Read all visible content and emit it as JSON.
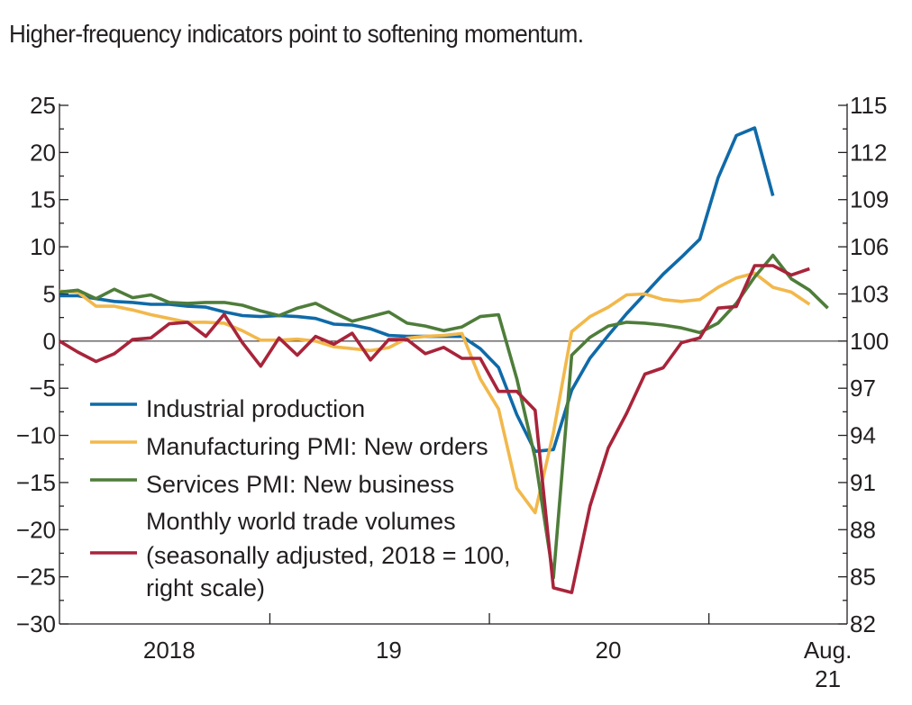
{
  "chart_data": {
    "type": "line",
    "title": "Higher-frequency indicators point to softening momentum.",
    "x": [
      "2018-01",
      "2018-02",
      "2018-03",
      "2018-04",
      "2018-05",
      "2018-06",
      "2018-07",
      "2018-08",
      "2018-09",
      "2018-10",
      "2018-11",
      "2018-12",
      "2019-01",
      "2019-02",
      "2019-03",
      "2019-04",
      "2019-05",
      "2019-06",
      "2019-07",
      "2019-08",
      "2019-09",
      "2019-10",
      "2019-11",
      "2019-12",
      "2020-01",
      "2020-02",
      "2020-03",
      "2020-04",
      "2020-05",
      "2020-06",
      "2020-07",
      "2020-08",
      "2020-09",
      "2020-10",
      "2020-11",
      "2020-12",
      "2021-01",
      "2021-02",
      "2021-03",
      "2021-04",
      "2021-05",
      "2021-06",
      "2021-07",
      "2021-08"
    ],
    "x_tick_labels": [
      {
        "x": "2018-07",
        "label": "2018"
      },
      {
        "x": "2019-07",
        "label": "19"
      },
      {
        "x": "2020-07",
        "label": "20"
      },
      {
        "x": "2021-07",
        "label": "Aug.\n21"
      }
    ],
    "y_left": {
      "ylim": [
        -30,
        25
      ],
      "ticks": [
        "25",
        "20",
        "15",
        "10",
        "5",
        "0",
        "−5",
        "−10",
        "−15",
        "−20",
        "−25",
        "−30"
      ]
    },
    "y_right": {
      "ylim": [
        82,
        115
      ],
      "ticks": [
        "115",
        "112",
        "109",
        "106",
        "103",
        "100",
        "97",
        "94",
        "91",
        "88",
        "85",
        "82"
      ]
    },
    "series": [
      {
        "name": "Industrial production",
        "axis": "left",
        "color": "#0f6aa8",
        "values": [
          4.8,
          4.8,
          4.5,
          4.2,
          4.1,
          3.9,
          3.9,
          3.7,
          3.6,
          3.1,
          2.7,
          2.6,
          2.7,
          2.6,
          2.4,
          1.8,
          1.7,
          1.3,
          0.6,
          0.5,
          0.5,
          0.5,
          0.5,
          -0.8,
          -2.8,
          -7.8,
          -11.7,
          -11.5,
          -5.2,
          -1.8,
          0.6,
          2.9,
          5.0,
          7.1,
          8.9,
          10.8,
          17.3,
          21.8,
          22.6,
          15.4,
          null,
          null,
          null,
          null
        ]
      },
      {
        "name": "Manufacturing PMI: New orders",
        "axis": "left",
        "color": "#f2b84b",
        "values": [
          5.3,
          5.2,
          3.7,
          3.7,
          3.3,
          2.8,
          2.4,
          2.0,
          2.0,
          1.9,
          1.1,
          0.1,
          0.1,
          0.2,
          0.0,
          -0.6,
          -0.8,
          -1.0,
          -0.7,
          0.3,
          0.5,
          0.6,
          0.8,
          -4.0,
          -7.2,
          -15.6,
          -18.2,
          -9.7,
          1.0,
          2.6,
          3.6,
          4.9,
          5.0,
          4.4,
          4.2,
          4.4,
          5.7,
          6.7,
          7.2,
          5.7,
          5.2,
          3.9,
          null,
          null
        ]
      },
      {
        "name": "Services PMI: New business",
        "axis": "left",
        "color": "#4e7d3a",
        "values": [
          5.2,
          5.4,
          4.5,
          5.5,
          4.6,
          4.9,
          4.1,
          4.0,
          4.1,
          4.1,
          3.8,
          3.2,
          2.7,
          3.5,
          4.0,
          3.0,
          2.1,
          2.6,
          3.1,
          1.9,
          1.6,
          1.1,
          1.5,
          2.6,
          2.8,
          -4.0,
          -12.4,
          -25.1,
          -1.5,
          0.4,
          1.6,
          2.0,
          1.9,
          1.7,
          1.4,
          0.9,
          1.9,
          4.0,
          6.8,
          9.1,
          6.6,
          5.4,
          3.5,
          null
        ]
      },
      {
        "name": "Monthly world trade volumes (seasonally adjusted, 2018 = 100, right scale)",
        "axis": "right",
        "color": "#a8243a",
        "values": [
          100.0,
          99.3,
          98.7,
          99.2,
          100.1,
          100.2,
          101.1,
          101.2,
          100.3,
          101.7,
          99.9,
          98.4,
          100.2,
          99.1,
          100.3,
          99.8,
          100.5,
          98.8,
          100.1,
          100.1,
          99.2,
          99.6,
          98.9,
          98.9,
          96.8,
          96.8,
          95.6,
          84.3,
          84.0,
          89.5,
          93.2,
          95.4,
          97.9,
          98.3,
          99.9,
          100.2,
          102.1,
          102.2,
          104.8,
          104.8,
          104.2,
          104.6,
          null,
          null
        ]
      }
    ],
    "legend": {
      "placement": "bottom-left",
      "entries": [
        [
          "Industrial production"
        ],
        [
          "Manufacturing PMI: New orders"
        ],
        [
          "Services PMI: New business"
        ],
        [
          "Monthly world trade volumes",
          "(seasonally adjusted, 2018 = 100,",
          "right scale)"
        ]
      ]
    },
    "zero_line": true,
    "grid": false
  }
}
